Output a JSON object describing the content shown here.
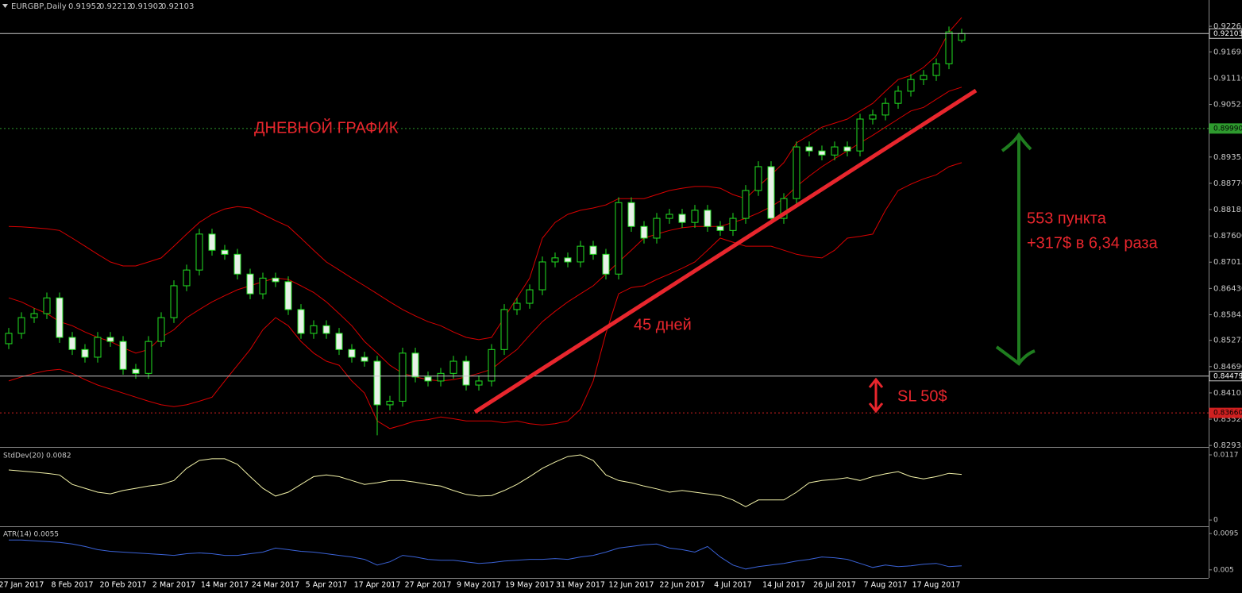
{
  "header": {
    "symbol": "EURGBP,Daily",
    "values": [
      0.91952,
      0.92212,
      0.91902,
      0.92103
    ]
  },
  "chart_data": [
    {
      "type": "candlestick",
      "annotations": [
        "ДНЕВНОЙ ГРАФИК",
        "45 дней",
        "553 пункта",
        "+317$ в 6,34 раза",
        "SL 50$"
      ],
      "categories": [
        null,
        "27 Jan 2017",
        null,
        null,
        null,
        "8 Feb 2017",
        null,
        null,
        null,
        "20 Feb 2017",
        null,
        null,
        null,
        "2 Mar 2017",
        null,
        null,
        null,
        "14 Mar 2017",
        null,
        null,
        null,
        "24 Mar 2017",
        null,
        null,
        null,
        "5 Apr 2017",
        null,
        null,
        null,
        "17 Apr 2017",
        null,
        null,
        null,
        "27 Apr 2017",
        null,
        null,
        null,
        "9 May 2017",
        null,
        null,
        null,
        "19 May 2017",
        null,
        null,
        null,
        "31 May 2017",
        null,
        null,
        null,
        "12 Jun 2017",
        null,
        null,
        null,
        "22 Jun 2017",
        null,
        null,
        null,
        "4 Jul 2017",
        null,
        null,
        null,
        "14 Jul 2017",
        null,
        null,
        null,
        "26 Jul 2017",
        null,
        null,
        null,
        "7 Aug 2017",
        null,
        null,
        null,
        "17 Aug 2017",
        null,
        null
      ],
      "open": [
        0.852,
        0.8543,
        0.8578,
        0.8587,
        0.8622,
        0.8534,
        0.8507,
        0.849,
        0.8534,
        0.8525,
        0.8463,
        0.8454,
        0.8525,
        0.8578,
        0.8649,
        0.8684,
        0.8764,
        0.8728,
        0.8719,
        0.8675,
        0.8631,
        0.8666,
        0.8658,
        0.8596,
        0.8543,
        0.856,
        0.8543,
        0.8507,
        0.849,
        0.8481,
        0.8384,
        0.8392,
        0.8499,
        0.8446,
        0.8437,
        0.8454,
        0.8481,
        0.8428,
        0.8437,
        0.8507,
        0.8596,
        0.861,
        0.864,
        0.8702,
        0.8711,
        0.8702,
        0.8737,
        0.8719,
        0.8675,
        0.8834,
        0.8781,
        0.8755,
        0.8799,
        0.8808,
        0.879,
        0.8817,
        0.8781,
        0.8772,
        0.8799,
        0.8861,
        0.8914,
        0.8799,
        0.8843,
        0.8958,
        0.8949,
        0.894,
        0.8958,
        0.8949,
        0.902,
        0.9029,
        0.9055,
        0.9082,
        0.9108,
        0.9117,
        0.9143,
        0.91952
      ],
      "high": [
        0.8555,
        0.859,
        0.8599,
        0.8634,
        0.8634,
        0.8546,
        0.8519,
        0.8546,
        0.8546,
        0.8537,
        0.8475,
        0.8537,
        0.859,
        0.8661,
        0.8696,
        0.8776,
        0.8776,
        0.874,
        0.8731,
        0.8687,
        0.8678,
        0.8678,
        0.867,
        0.8608,
        0.8572,
        0.8572,
        0.8555,
        0.8519,
        0.8502,
        0.8493,
        0.8404,
        0.8511,
        0.8511,
        0.8458,
        0.8466,
        0.8493,
        0.8493,
        0.8449,
        0.8519,
        0.8608,
        0.8622,
        0.8652,
        0.8714,
        0.8723,
        0.8723,
        0.8749,
        0.8749,
        0.8731,
        0.8846,
        0.8846,
        0.8793,
        0.8811,
        0.882,
        0.882,
        0.8829,
        0.8829,
        0.8793,
        0.8811,
        0.8873,
        0.8926,
        0.8926,
        0.8855,
        0.897,
        0.897,
        0.8961,
        0.897,
        0.897,
        0.9032,
        0.9041,
        0.9067,
        0.9094,
        0.912,
        0.9129,
        0.9155,
        0.9226,
        0.92212
      ],
      "low": [
        0.8508,
        0.8531,
        0.8566,
        0.8575,
        0.8522,
        0.8495,
        0.8478,
        0.8478,
        0.8513,
        0.8451,
        0.8442,
        0.8442,
        0.8513,
        0.8566,
        0.8637,
        0.8672,
        0.8716,
        0.8707,
        0.8663,
        0.8619,
        0.8619,
        0.8646,
        0.8584,
        0.8531,
        0.8531,
        0.8531,
        0.8495,
        0.8478,
        0.8469,
        0.8316,
        0.8372,
        0.838,
        0.8434,
        0.8425,
        0.8425,
        0.8442,
        0.8416,
        0.8416,
        0.8425,
        0.8495,
        0.8584,
        0.8598,
        0.8628,
        0.869,
        0.869,
        0.869,
        0.8707,
        0.8663,
        0.8663,
        0.8769,
        0.8743,
        0.8743,
        0.8787,
        0.8778,
        0.8778,
        0.8769,
        0.876,
        0.876,
        0.8787,
        0.8849,
        0.8787,
        0.8787,
        0.8831,
        0.8937,
        0.8928,
        0.8928,
        0.8937,
        0.8937,
        0.9008,
        0.9017,
        0.9043,
        0.907,
        0.9096,
        0.9105,
        0.9131,
        0.91902
      ],
      "close": [
        0.8543,
        0.8578,
        0.8587,
        0.8622,
        0.8534,
        0.8507,
        0.849,
        0.8534,
        0.8525,
        0.8463,
        0.8454,
        0.8525,
        0.8578,
        0.8649,
        0.8684,
        0.8764,
        0.8728,
        0.8719,
        0.8675,
        0.8631,
        0.8666,
        0.8658,
        0.8596,
        0.8543,
        0.856,
        0.8543,
        0.8507,
        0.849,
        0.8481,
        0.8384,
        0.8392,
        0.8499,
        0.8446,
        0.8437,
        0.8454,
        0.8481,
        0.8428,
        0.8437,
        0.8507,
        0.8596,
        0.861,
        0.864,
        0.8702,
        0.8711,
        0.8702,
        0.8737,
        0.8719,
        0.8675,
        0.8834,
        0.8781,
        0.8755,
        0.8799,
        0.8808,
        0.879,
        0.8817,
        0.8781,
        0.8772,
        0.8799,
        0.8861,
        0.8914,
        0.8799,
        0.8843,
        0.8958,
        0.8949,
        0.894,
        0.8958,
        0.8949,
        0.902,
        0.9029,
        0.9055,
        0.9082,
        0.9108,
        0.9117,
        0.9143,
        0.9214,
        0.92103
      ],
      "wick_color": "#22e022",
      "bull_fill": "#000000",
      "bear_fill": "#e8f0e8",
      "overlays": [
        {
          "color": "#d80000",
          "values": [
            0.8781,
            0.878,
            0.8778,
            0.8776,
            0.8772,
            0.8755,
            0.8737,
            0.8719,
            0.8702,
            0.8693,
            0.8693,
            0.8702,
            0.8711,
            0.8737,
            0.8764,
            0.879,
            0.8808,
            0.882,
            0.8825,
            0.8822,
            0.8808,
            0.8794,
            0.8781,
            0.8755,
            0.8728,
            0.8702,
            0.8684,
            0.8666,
            0.8649,
            0.8631,
            0.8613,
            0.8596,
            0.8582,
            0.8569,
            0.856,
            0.8546,
            0.8534,
            0.8529,
            0.8534,
            0.8578,
            0.8622,
            0.8666,
            0.8755,
            0.879,
            0.8808,
            0.8817,
            0.8822,
            0.8829,
            0.8843,
            0.8843,
            0.8843,
            0.8852,
            0.8861,
            0.8866,
            0.887,
            0.887,
            0.8866,
            0.8852,
            0.8843,
            0.887,
            0.8896,
            0.8923,
            0.8967,
            0.8984,
            0.9002,
            0.9011,
            0.902,
            0.9038,
            0.9055,
            0.9082,
            0.9108,
            0.9117,
            0.9135,
            0.9161,
            0.9214,
            0.9246
          ]
        },
        {
          "color": "#d80000",
          "values": [
            0.8622,
            0.8613,
            0.8599,
            0.8587,
            0.8569,
            0.856,
            0.8546,
            0.8534,
            0.8525,
            0.8511,
            0.8499,
            0.8507,
            0.8534,
            0.8551,
            0.8578,
            0.8596,
            0.8613,
            0.8627,
            0.864,
            0.8649,
            0.8658,
            0.8666,
            0.8663,
            0.8649,
            0.8634,
            0.8613,
            0.8587,
            0.856,
            0.8525,
            0.8499,
            0.8472,
            0.8454,
            0.8446,
            0.844,
            0.8437,
            0.844,
            0.8446,
            0.8454,
            0.8463,
            0.8486,
            0.8507,
            0.8539,
            0.8569,
            0.8592,
            0.8613,
            0.8631,
            0.8649,
            0.8675,
            0.8702,
            0.8728,
            0.8755,
            0.8764,
            0.8772,
            0.8778,
            0.8781,
            0.8781,
            0.8781,
            0.879,
            0.8799,
            0.8811,
            0.8825,
            0.8843,
            0.887,
            0.8893,
            0.8914,
            0.8932,
            0.8949,
            0.8967,
            0.8984,
            0.9002,
            0.902,
            0.9038,
            0.9046,
            0.9064,
            0.9082,
            0.9091
          ]
        },
        {
          "color": "#d80000",
          "values": [
            0.8437,
            0.8446,
            0.8454,
            0.846,
            0.8463,
            0.8454,
            0.844,
            0.8428,
            0.8419,
            0.841,
            0.8401,
            0.8392,
            0.8384,
            0.838,
            0.8384,
            0.8392,
            0.8401,
            0.8437,
            0.8472,
            0.8507,
            0.8551,
            0.8578,
            0.856,
            0.8525,
            0.8499,
            0.8481,
            0.8472,
            0.8437,
            0.841,
            0.8348,
            0.8331,
            0.8339,
            0.8348,
            0.8351,
            0.8357,
            0.8353,
            0.8348,
            0.8348,
            0.8348,
            0.8344,
            0.8348,
            0.8342,
            0.8339,
            0.8342,
            0.8348,
            0.8374,
            0.8437,
            0.8543,
            0.8631,
            0.8645,
            0.8649,
            0.8663,
            0.8675,
            0.8688,
            0.8702,
            0.8728,
            0.8755,
            0.8746,
            0.8737,
            0.8737,
            0.8737,
            0.8728,
            0.8719,
            0.8714,
            0.8711,
            0.8728,
            0.8755,
            0.8759,
            0.8764,
            0.8817,
            0.8861,
            0.8875,
            0.8887,
            0.8896,
            0.8914,
            0.8923
          ]
        }
      ],
      "price_lines": [
        {
          "value": 0.92103,
          "color": "#c8c8c8",
          "dash": false
        },
        {
          "value": 0.8999,
          "label": "0.89990",
          "color": "#2e9a2e",
          "dash": true
        },
        {
          "value": 0.84479,
          "color": "#c8c8c8",
          "dash": false
        },
        {
          "value": 0.8366,
          "label": "0.83660",
          "color": "#d02020",
          "dash": true
        }
      ],
      "ylim": [
        0.8292,
        0.9285
      ],
      "yticks": [
        0.92265,
        0.91695,
        {
          "value": 0.9111,
          "label": "0.91110"
        },
        0.90525,
        0.89355,
        {
          "value": 0.8877,
          "label": "0.88770"
        },
        0.88185,
        {
          "value": 0.876,
          "label": "0.87600"
        },
        0.87015,
        {
          "value": 0.8643,
          "label": "0.86430"
        },
        0.85845,
        0.85275,
        {
          "value": 0.8469,
          "label": "0.84690"
        },
        0.84105,
        {
          "value": 0.8352,
          "label": "0.83520"
        },
        0.82935
      ]
    },
    {
      "type": "line",
      "title": "StdDev(20) 0.0082",
      "color": "#f2f2a8",
      "values": [
        0.009,
        0.0088,
        0.0086,
        0.0084,
        0.0081,
        0.0064,
        0.0057,
        0.005,
        0.0047,
        0.0053,
        0.0057,
        0.0061,
        0.0064,
        0.0071,
        0.0093,
        0.0107,
        0.011,
        0.011,
        0.01,
        0.0078,
        0.0057,
        0.0043,
        0.005,
        0.0064,
        0.0078,
        0.0081,
        0.0078,
        0.0071,
        0.0064,
        0.0067,
        0.0071,
        0.0071,
        0.0068,
        0.0064,
        0.0061,
        0.0053,
        0.0046,
        0.0043,
        0.0044,
        0.0053,
        0.0064,
        0.0078,
        0.0093,
        0.0104,
        0.0114,
        0.0117,
        0.0107,
        0.0081,
        0.0071,
        0.0067,
        0.0061,
        0.0056,
        0.005,
        0.0053,
        0.005,
        0.0047,
        0.0044,
        0.0036,
        0.0024,
        0.0036,
        0.0036,
        0.0036,
        0.005,
        0.0067,
        0.0071,
        0.0073,
        0.0076,
        0.0071,
        0.0078,
        0.0083,
        0.0087,
        0.0078,
        0.0074,
        0.0078,
        0.0084,
        0.0082
      ],
      "ylim": [
        -0.0007,
        0.0127
      ],
      "yticks": [
        0.0117,
        0
      ]
    },
    {
      "type": "line",
      "title": "ATR(14) 0.0055",
      "color": "#3a62d6",
      "values": [
        0.0087,
        0.0087,
        0.0086,
        0.0085,
        0.0084,
        0.0082,
        0.0079,
        0.0075,
        0.0073,
        0.0072,
        0.0071,
        0.007,
        0.0069,
        0.0068,
        0.007,
        0.0071,
        0.007,
        0.0068,
        0.0068,
        0.007,
        0.0072,
        0.0077,
        0.0075,
        0.0073,
        0.0072,
        0.007,
        0.0068,
        0.0066,
        0.0063,
        0.0056,
        0.006,
        0.0068,
        0.0066,
        0.0063,
        0.0062,
        0.0062,
        0.006,
        0.0058,
        0.0059,
        0.0061,
        0.0062,
        0.0063,
        0.0063,
        0.0064,
        0.0063,
        0.0066,
        0.0068,
        0.0072,
        0.0077,
        0.0079,
        0.0081,
        0.0082,
        0.0077,
        0.0075,
        0.0072,
        0.0079,
        0.0066,
        0.0056,
        0.0051,
        0.0054,
        0.0056,
        0.0058,
        0.0061,
        0.0063,
        0.0066,
        0.0065,
        0.0063,
        0.0058,
        0.0053,
        0.0056,
        0.0054,
        0.0055,
        0.0057,
        0.0058,
        0.0054,
        0.0055
      ],
      "ylim": [
        0.0041,
        0.0102
      ],
      "yticks": [
        0.0095,
        0.005
      ]
    }
  ]
}
